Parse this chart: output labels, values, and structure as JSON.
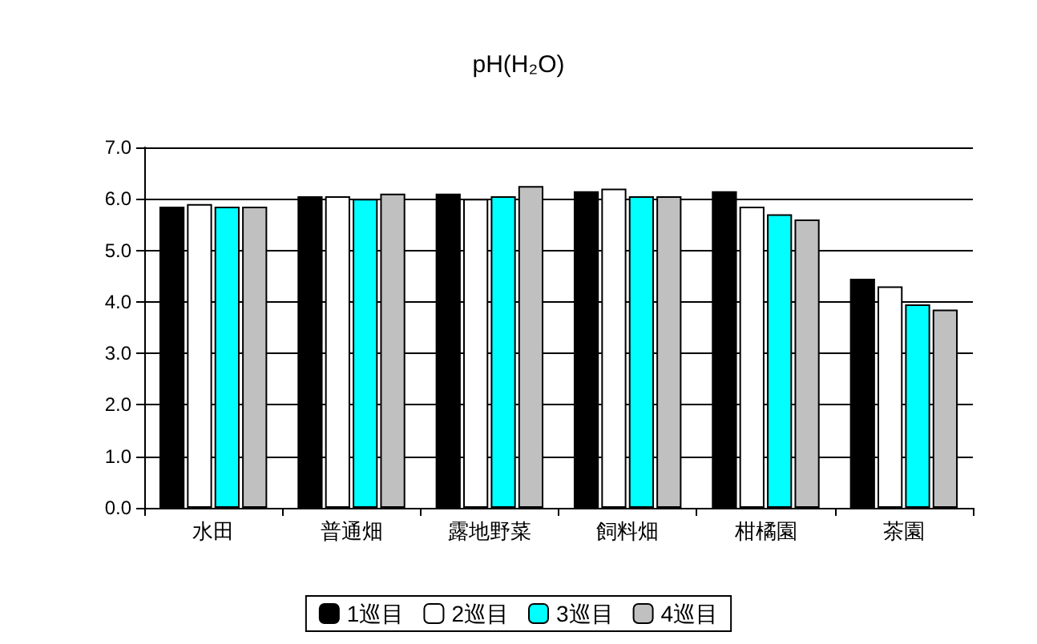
{
  "chart_data": {
    "type": "bar",
    "title": "pH(H₂O)",
    "categories": [
      "水田",
      "普通畑",
      "露地野菜",
      "飼料畑",
      "柑橘園",
      "茶園"
    ],
    "series": [
      {
        "name": "1巡目",
        "color": "#000000",
        "values": [
          5.85,
          6.05,
          6.1,
          6.15,
          6.15,
          4.45
        ]
      },
      {
        "name": "2巡目",
        "color": "#ffffff",
        "values": [
          5.9,
          6.05,
          6.0,
          6.2,
          5.85,
          4.3
        ]
      },
      {
        "name": "3巡目",
        "color": "#00ffff",
        "values": [
          5.85,
          6.0,
          6.05,
          6.05,
          5.7,
          3.95
        ]
      },
      {
        "name": "4巡目",
        "color": "#c0c0c0",
        "values": [
          5.85,
          6.1,
          6.25,
          6.05,
          5.6,
          3.85
        ]
      }
    ],
    "ylim": [
      0,
      7
    ],
    "yticks": [
      {
        "value": 0,
        "label": "0.0"
      },
      {
        "value": 1,
        "label": "1.0"
      },
      {
        "value": 2,
        "label": "2.0"
      },
      {
        "value": 3,
        "label": "3.0"
      },
      {
        "value": 4,
        "label": "4.0"
      },
      {
        "value": 5,
        "label": "5.0"
      },
      {
        "value": 6,
        "label": "6.0"
      },
      {
        "value": 7,
        "label": "7.0"
      }
    ],
    "grid": "y",
    "legend": "bottom"
  }
}
